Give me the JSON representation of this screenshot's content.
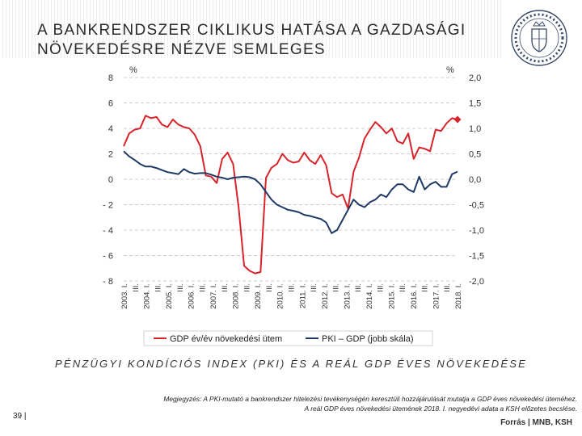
{
  "slide": {
    "title_line1": "A BANKRENDSZER CIKLIKUS HATÁSA A GAZDASÁGI",
    "title_line2": "NÖVEKEDÉSRE NÉZVE SEMLEGES",
    "subtitle": "PÉNZÜGYI KONDÍCIÓS INDEX (PKI) ÉS A REÁL GDP ÉVES NÖVEKEDÉSE",
    "page_number": "39 |",
    "footnote": "Megjegyzés: A PKI-mutató a bankrendszer hitelezési tevékenységén keresztüli hozzájárulását mutatja a GDP éves növekedési üteméhez. A reál GDP éves növekedési ütemének 2018. I. negyedévi adata a KSH előzetes becslése.",
    "source": "Forrás | MNB, KSH",
    "logo": "mnb-seal"
  },
  "chart_data": {
    "type": "line",
    "title": "",
    "x_labels": [
      "2003. I.",
      "III.",
      "2004. I.",
      "III.",
      "2005. I.",
      "III.",
      "2006. I.",
      "III.",
      "2007. I.",
      "III.",
      "2008. I.",
      "III.",
      "2009. I.",
      "III.",
      "2010. I.",
      "III.",
      "2011. I.",
      "III.",
      "2012. I.",
      "III.",
      "2013. I.",
      "III.",
      "2014. I.",
      "III.",
      "2015. I.",
      "III.",
      "2016. I.",
      "III.",
      "2017. I.",
      "III.",
      "2018. I."
    ],
    "left_axis": {
      "unit": "%",
      "min": -8,
      "max": 8,
      "ticks": [
        8,
        6,
        4,
        2,
        0,
        -2,
        -4,
        -6,
        -8
      ],
      "tick_labels": [
        "8",
        "6",
        "4",
        "2",
        "0",
        "- 2",
        "- 4",
        "- 6",
        "- 8"
      ]
    },
    "right_axis": {
      "unit": "%",
      "min": -2.0,
      "max": 2.0,
      "ticks": [
        2.0,
        1.5,
        1.0,
        0.5,
        0.0,
        -0.5,
        -1.0,
        -1.5,
        -2.0
      ],
      "tick_labels": [
        "2,0",
        "1,5",
        "1,0",
        "0,5",
        "0,0",
        "-0,5",
        "-1,0",
        "-1,5",
        "-2,0"
      ]
    },
    "gridlines": "horizontal-dashed",
    "legend_position": "bottom",
    "series": [
      {
        "name": "GDP év/év növekedési ütem",
        "axis": "left",
        "color": "#d7242a",
        "values": [
          2.6,
          3.6,
          3.9,
          4.0,
          5.0,
          4.8,
          4.9,
          4.3,
          4.1,
          4.7,
          4.3,
          4.1,
          4.0,
          3.5,
          2.6,
          0.3,
          0.2,
          -0.3,
          1.6,
          2.1,
          1.2,
          -2.2,
          -6.8,
          -7.2,
          -7.4,
          -7.3,
          0.1,
          0.9,
          1.2,
          2.0,
          1.5,
          1.3,
          1.4,
          2.1,
          1.5,
          1.2,
          1.9,
          1.1,
          -1.1,
          -1.4,
          -1.2,
          -2.3,
          0.6,
          1.7,
          3.2,
          3.9,
          4.5,
          4.1,
          3.6,
          4.0,
          3.0,
          2.8,
          3.6,
          1.6,
          2.5,
          2.4,
          2.2,
          3.9,
          3.8,
          4.4,
          4.8,
          4.7
        ],
        "end_marker": "diamond"
      },
      {
        "name": "PKI – GDP (jobb skála)",
        "axis": "right",
        "color": "#1f3864",
        "values": [
          0.55,
          0.45,
          0.38,
          0.3,
          0.25,
          0.25,
          0.22,
          0.18,
          0.14,
          0.12,
          0.1,
          0.2,
          0.14,
          0.11,
          0.12,
          0.12,
          0.09,
          0.05,
          0.03,
          0.0,
          0.03,
          0.04,
          0.05,
          0.04,
          0.0,
          -0.1,
          -0.25,
          -0.4,
          -0.5,
          -0.55,
          -0.6,
          -0.62,
          -0.65,
          -0.7,
          -0.72,
          -0.75,
          -0.78,
          -0.85,
          -1.06,
          -1.0,
          -0.8,
          -0.6,
          -0.4,
          -0.5,
          -0.55,
          -0.45,
          -0.4,
          -0.3,
          -0.35,
          -0.2,
          -0.1,
          -0.1,
          -0.2,
          -0.25,
          0.05,
          -0.2,
          -0.1,
          -0.05,
          -0.15,
          -0.15,
          0.1,
          0.15
        ]
      }
    ]
  }
}
